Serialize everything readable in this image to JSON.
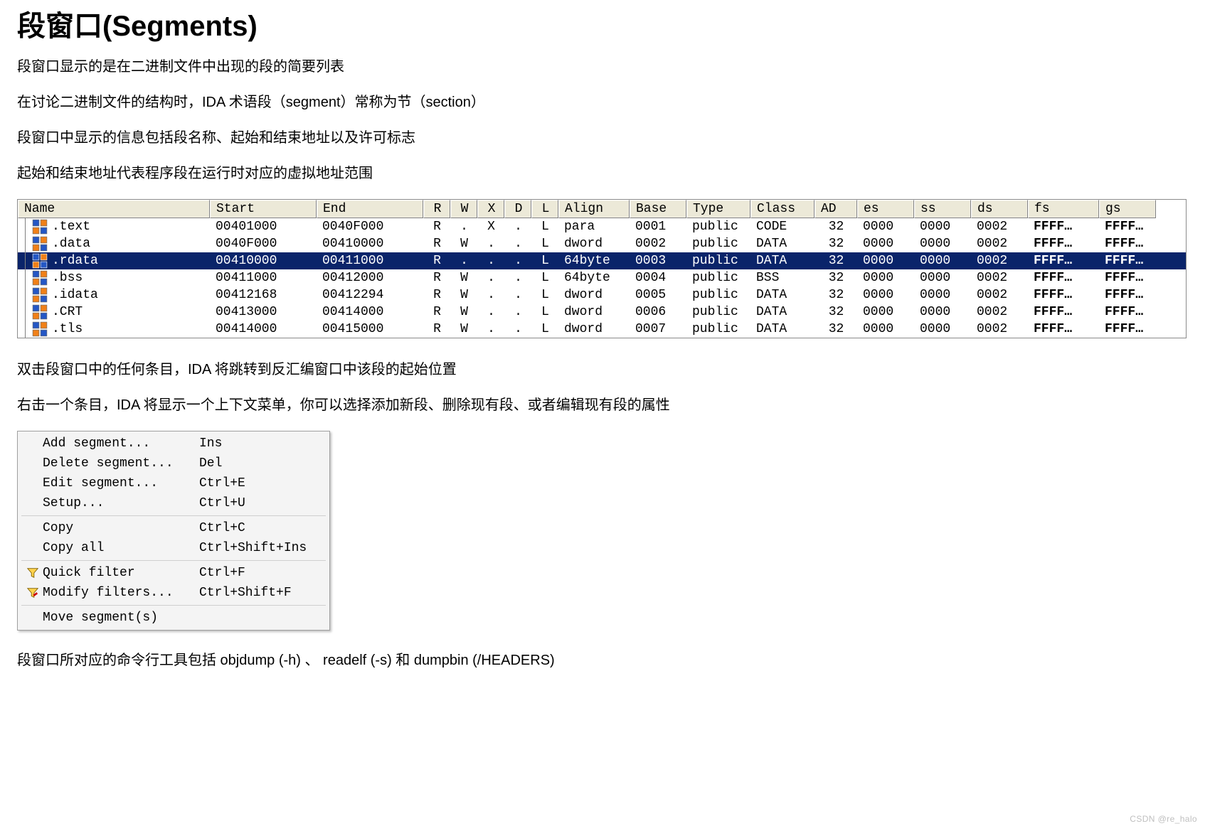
{
  "title": "段窗口(Segments)",
  "paragraphs_top": [
    "段窗口显示的是在二进制文件中出现的段的简要列表",
    "在讨论二进制文件的结构时，IDA 术语段（segment）常称为节（section）",
    "段窗口中显示的信息包括段名称、起始和结束地址以及许可标志",
    "起始和结束地址代表程序段在运行时对应的虚拟地址范围"
  ],
  "segments": {
    "columns": [
      "Name",
      "Start",
      "End",
      "R",
      "W",
      "X",
      "D",
      "L",
      "Align",
      "Base",
      "Type",
      "Class",
      "AD",
      "es",
      "ss",
      "ds",
      "fs",
      "gs"
    ],
    "rows": [
      {
        "name": ".text",
        "start": "00401000",
        "end": "0040F000",
        "r": "R",
        "w": ".",
        "x": "X",
        "d": ".",
        "l": "L",
        "align": "para",
        "base": "0001",
        "type": "public",
        "class": "CODE",
        "ad": "32",
        "es": "0000",
        "ss": "0000",
        "ds": "0002",
        "fs": "FFFF…",
        "gs": "FFFF…",
        "selected": false
      },
      {
        "name": ".data",
        "start": "0040F000",
        "end": "00410000",
        "r": "R",
        "w": "W",
        "x": ".",
        "d": ".",
        "l": "L",
        "align": "dword",
        "base": "0002",
        "type": "public",
        "class": "DATA",
        "ad": "32",
        "es": "0000",
        "ss": "0000",
        "ds": "0002",
        "fs": "FFFF…",
        "gs": "FFFF…",
        "selected": false
      },
      {
        "name": ".rdata",
        "start": "00410000",
        "end": "00411000",
        "r": "R",
        "w": ".",
        "x": ".",
        "d": ".",
        "l": "L",
        "align": "64byte",
        "base": "0003",
        "type": "public",
        "class": "DATA",
        "ad": "32",
        "es": "0000",
        "ss": "0000",
        "ds": "0002",
        "fs": "FFFF…",
        "gs": "FFFF…",
        "selected": true
      },
      {
        "name": ".bss",
        "start": "00411000",
        "end": "00412000",
        "r": "R",
        "w": "W",
        "x": ".",
        "d": ".",
        "l": "L",
        "align": "64byte",
        "base": "0004",
        "type": "public",
        "class": "BSS",
        "ad": "32",
        "es": "0000",
        "ss": "0000",
        "ds": "0002",
        "fs": "FFFF…",
        "gs": "FFFF…",
        "selected": false
      },
      {
        "name": ".idata",
        "start": "00412168",
        "end": "00412294",
        "r": "R",
        "w": "W",
        "x": ".",
        "d": ".",
        "l": "L",
        "align": "dword",
        "base": "0005",
        "type": "public",
        "class": "DATA",
        "ad": "32",
        "es": "0000",
        "ss": "0000",
        "ds": "0002",
        "fs": "FFFF…",
        "gs": "FFFF…",
        "selected": false
      },
      {
        "name": ".CRT",
        "start": "00413000",
        "end": "00414000",
        "r": "R",
        "w": "W",
        "x": ".",
        "d": ".",
        "l": "L",
        "align": "dword",
        "base": "0006",
        "type": "public",
        "class": "DATA",
        "ad": "32",
        "es": "0000",
        "ss": "0000",
        "ds": "0002",
        "fs": "FFFF…",
        "gs": "FFFF…",
        "selected": false
      },
      {
        "name": ".tls",
        "start": "00414000",
        "end": "00415000",
        "r": "R",
        "w": "W",
        "x": ".",
        "d": ".",
        "l": "L",
        "align": "dword",
        "base": "0007",
        "type": "public",
        "class": "DATA",
        "ad": "32",
        "es": "0000",
        "ss": "0000",
        "ds": "0002",
        "fs": "FFFF…",
        "gs": "FFFF…",
        "selected": false
      }
    ],
    "colors": {
      "header_bg": "#ece9d8",
      "selected_bg": "#0a246a",
      "selected_fg": "#ffffff",
      "icon_blue": "#2457c5",
      "icon_orange": "#f08018"
    }
  },
  "paragraphs_mid": [
    "双击段窗口中的任何条目，IDA 将跳转到反汇编窗口中该段的起始位置",
    "右击一个条目，IDA 将显示一个上下文菜单，你可以选择添加新段、删除现有段、或者编辑现有段的属性"
  ],
  "context_menu": {
    "groups": [
      [
        {
          "label": "Add segment...",
          "shortcut": "Ins",
          "icon": null
        },
        {
          "label": "Delete segment...",
          "shortcut": "Del",
          "icon": null
        },
        {
          "label": "Edit segment...",
          "shortcut": "Ctrl+E",
          "icon": null
        },
        {
          "label": "Setup...",
          "shortcut": "Ctrl+U",
          "icon": null
        }
      ],
      [
        {
          "label": "Copy",
          "shortcut": "Ctrl+C",
          "icon": null
        },
        {
          "label": "Copy all",
          "shortcut": "Ctrl+Shift+Ins",
          "icon": null
        }
      ],
      [
        {
          "label": "Quick filter",
          "shortcut": "Ctrl+F",
          "icon": "funnel"
        },
        {
          "label": "Modify filters...",
          "shortcut": "Ctrl+Shift+F",
          "icon": "funnel-edit"
        }
      ],
      [
        {
          "label": "Move segment(s)",
          "shortcut": "",
          "icon": null
        }
      ]
    ]
  },
  "paragraph_bottom": "段窗口所对应的命令行工具包括 objdump (-h) 、 readelf (-s) 和 dumpbin (/HEADERS)",
  "watermark": "CSDN @re_halo"
}
